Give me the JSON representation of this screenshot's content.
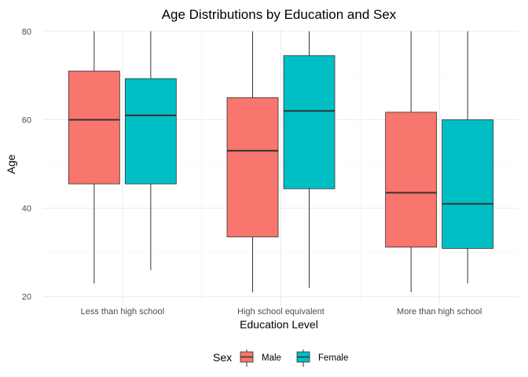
{
  "chart_data": {
    "type": "boxplot",
    "title": "Age Distributions by Education and Sex",
    "xlabel": "Education Level",
    "ylabel": "Age",
    "ylim": [
      18,
      80.5
    ],
    "yticks": [
      20,
      40,
      60,
      80
    ],
    "grid": true,
    "legend": {
      "title": "Sex",
      "position": "bottom"
    },
    "categories": [
      "Less than high school",
      "High school equivalent",
      "More than high school"
    ],
    "series": [
      {
        "name": "Male",
        "color": "#F8766D",
        "boxes": [
          {
            "min": 23,
            "q1": 45.5,
            "median": 60,
            "q3": 71,
            "max": 80
          },
          {
            "min": 21,
            "q1": 33.5,
            "median": 53,
            "q3": 65,
            "max": 80
          },
          {
            "min": 21,
            "q1": 31.2,
            "median": 43.5,
            "q3": 61.7,
            "max": 80
          }
        ]
      },
      {
        "name": "Female",
        "color": "#00BFC4",
        "boxes": [
          {
            "min": 26,
            "q1": 45.5,
            "median": 61,
            "q3": 69.3,
            "max": 80
          },
          {
            "min": 22,
            "q1": 44.4,
            "median": 62,
            "q3": 74.5,
            "max": 80
          },
          {
            "min": 23,
            "q1": 30.9,
            "median": 41,
            "q3": 60,
            "max": 80
          }
        ]
      }
    ]
  }
}
